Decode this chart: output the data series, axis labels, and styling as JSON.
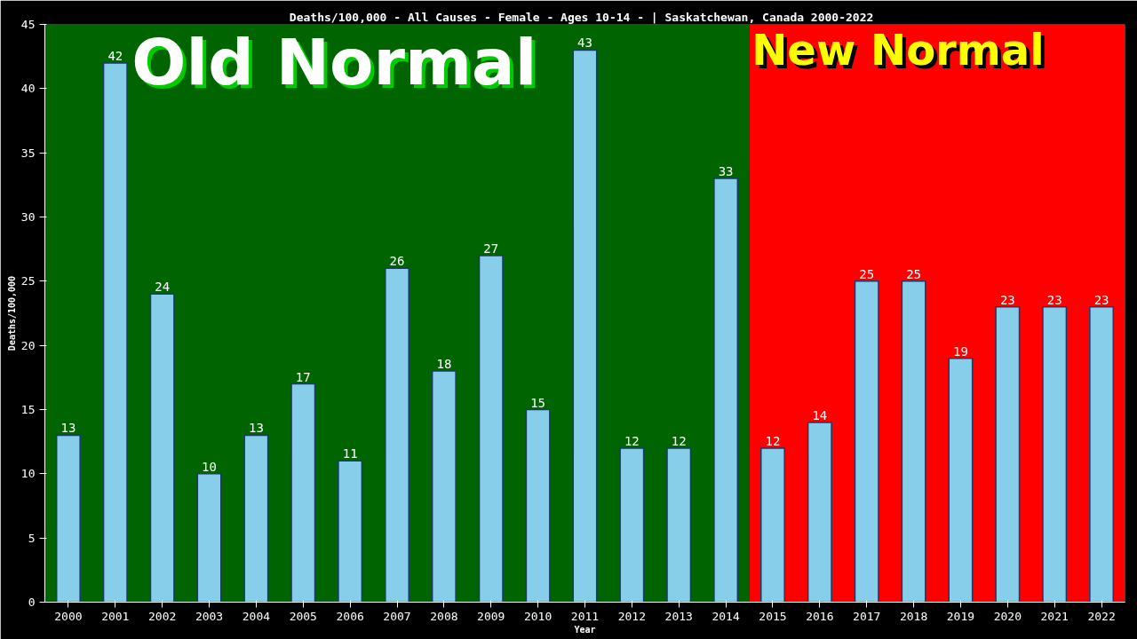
{
  "chart_data": {
    "type": "bar",
    "title": "Deaths/100,000 - All Causes - Female - Ages 10-14 -  | Saskatchewan, Canada 2000-2022",
    "xlabel": "Year",
    "ylabel": "Deaths/100,000",
    "categories": [
      "2000",
      "2001",
      "2002",
      "2003",
      "2004",
      "2005",
      "2006",
      "2007",
      "2008",
      "2009",
      "2010",
      "2011",
      "2012",
      "2013",
      "2014",
      "2015",
      "2016",
      "2017",
      "2018",
      "2019",
      "2020",
      "2021",
      "2022"
    ],
    "values": [
      13,
      42,
      24,
      10,
      13,
      17,
      11,
      26,
      18,
      27,
      15,
      43,
      12,
      12,
      33,
      12,
      14,
      25,
      25,
      19,
      23,
      23,
      23
    ],
    "color": "#87ceeb",
    "data_labels": true,
    "ylim": [
      0,
      45
    ],
    "yticks": [
      0,
      5,
      10,
      15,
      20,
      25,
      30,
      35,
      40,
      45
    ],
    "grid": false,
    "bands": [
      {
        "axis": "x",
        "from": "2000",
        "to": "2014",
        "label": "Old Normal",
        "color": "#006400"
      },
      {
        "axis": "x",
        "from": "2015",
        "to": "2022",
        "label": "New Normal",
        "color": "#ff0000"
      }
    ]
  }
}
